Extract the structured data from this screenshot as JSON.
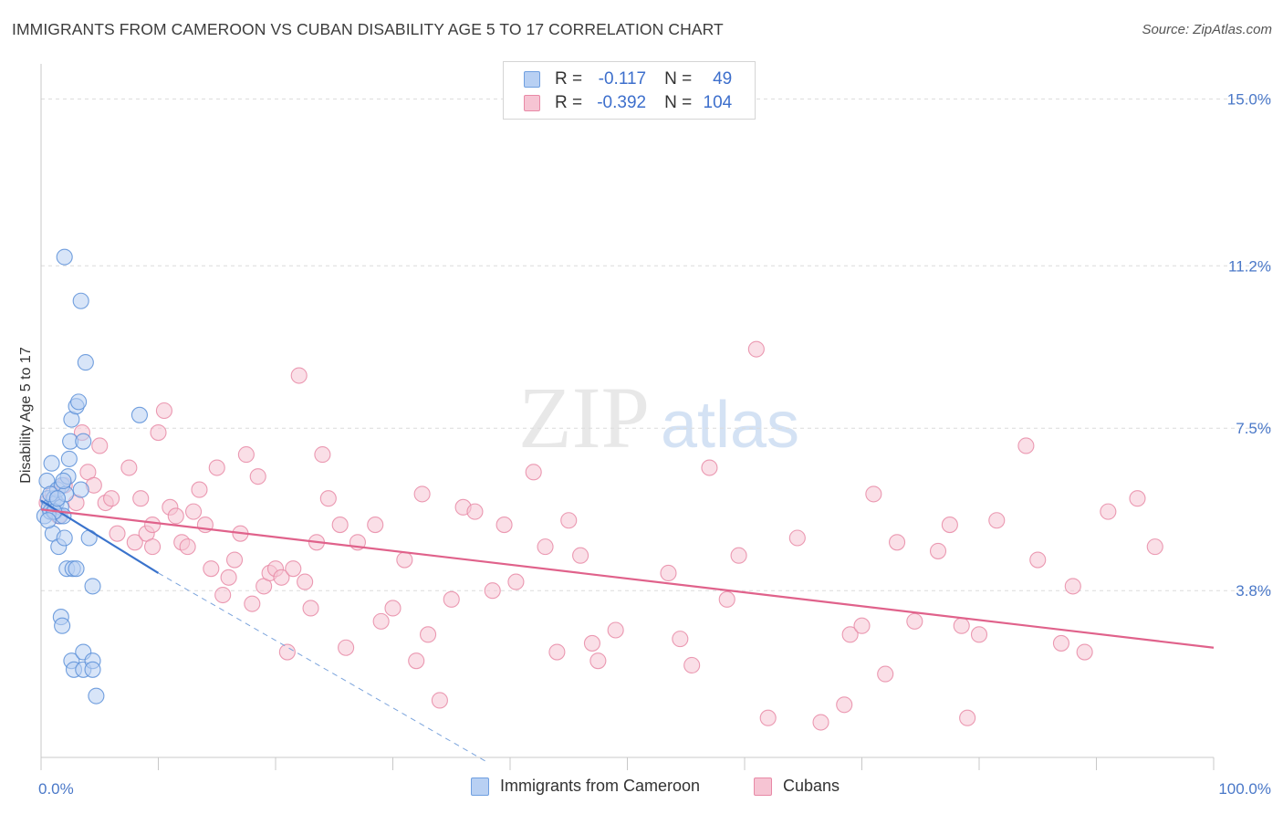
{
  "title": "IMMIGRANTS FROM CAMEROON VS CUBAN DISABILITY AGE 5 TO 17 CORRELATION CHART",
  "source": "Source: ZipAtlas.com",
  "watermark": {
    "zip": "ZIP",
    "atlas": "atlas"
  },
  "legend": {
    "r_label": "R =",
    "n_label": "N =",
    "rows": [
      {
        "r": "-0.117",
        "n": "49",
        "color": "#6f9fe0",
        "fill": "#b8d0f3"
      },
      {
        "r": "-0.392",
        "n": "104",
        "color": "#e889a6",
        "fill": "#f6c4d3"
      }
    ]
  },
  "chart_data": {
    "type": "scatter",
    "title": "IMMIGRANTS FROM CAMEROON VS CUBAN DISABILITY AGE 5 TO 17 CORRELATION CHART",
    "xlabel": "",
    "ylabel": "Disability Age 5 to 17",
    "xlim": [
      0,
      100
    ],
    "ylim": [
      0,
      15.8
    ],
    "x_tick_labels": [
      "0.0%",
      "100.0%"
    ],
    "y_ticks": [
      3.8,
      7.5,
      11.2,
      15.0
    ],
    "y_tick_labels": [
      "3.8%",
      "7.5%",
      "11.2%",
      "15.0%"
    ],
    "grid": true,
    "legend_position": "top-center",
    "series": [
      {
        "name": "Immigrants from Cameroon",
        "color": "#5b8fd8",
        "fill": "#b8d0f3",
        "trend": {
          "x": [
            0,
            10
          ],
          "y": [
            5.85,
            4.2
          ],
          "extend_x": 38,
          "extend_y": -0.1
        },
        "points": [
          [
            0.3,
            5.5
          ],
          [
            0.5,
            6.3
          ],
          [
            0.6,
            5.9
          ],
          [
            0.7,
            5.7
          ],
          [
            0.8,
            5.6
          ],
          [
            0.9,
            6.7
          ],
          [
            1.0,
            5.1
          ],
          [
            1.1,
            5.9
          ],
          [
            1.2,
            5.6
          ],
          [
            1.3,
            5.8
          ],
          [
            1.4,
            6.1
          ],
          [
            1.5,
            4.8
          ],
          [
            1.6,
            5.5
          ],
          [
            1.7,
            5.7
          ],
          [
            1.8,
            6.2
          ],
          [
            1.9,
            5.5
          ],
          [
            2.0,
            5.0
          ],
          [
            2.1,
            6.0
          ],
          [
            2.2,
            4.3
          ],
          [
            2.3,
            6.4
          ],
          [
            2.4,
            6.8
          ],
          [
            2.5,
            7.2
          ],
          [
            2.6,
            7.7
          ],
          [
            2.0,
            11.4
          ],
          [
            3.4,
            10.4
          ],
          [
            3.8,
            9.0
          ],
          [
            3.0,
            8.0
          ],
          [
            3.2,
            8.1
          ],
          [
            3.6,
            7.2
          ],
          [
            3.4,
            6.1
          ],
          [
            2.7,
            4.3
          ],
          [
            3.0,
            4.3
          ],
          [
            4.1,
            5.0
          ],
          [
            4.4,
            3.9
          ],
          [
            1.7,
            3.2
          ],
          [
            1.8,
            3.0
          ],
          [
            2.6,
            2.2
          ],
          [
            2.8,
            2.0
          ],
          [
            3.6,
            2.4
          ],
          [
            3.6,
            2.0
          ],
          [
            4.4,
            2.2
          ],
          [
            4.4,
            2.0
          ],
          [
            4.7,
            1.4
          ],
          [
            8.4,
            7.8
          ],
          [
            0.8,
            6.0
          ],
          [
            1.1,
            5.6
          ],
          [
            1.4,
            5.9
          ],
          [
            0.6,
            5.4
          ],
          [
            1.9,
            6.3
          ]
        ]
      },
      {
        "name": "Cubans",
        "color": "#e889a6",
        "fill": "#f6c4d3",
        "trend": {
          "x": [
            0,
            100
          ],
          "y": [
            5.65,
            2.5
          ]
        },
        "points": [
          [
            0.5,
            5.8
          ],
          [
            1.0,
            6.0
          ],
          [
            1.5,
            5.5
          ],
          [
            2.0,
            6.2
          ],
          [
            3.0,
            5.8
          ],
          [
            3.5,
            7.4
          ],
          [
            4.0,
            6.5
          ],
          [
            4.5,
            6.2
          ],
          [
            5.0,
            7.1
          ],
          [
            5.5,
            5.8
          ],
          [
            6.0,
            5.9
          ],
          [
            6.5,
            5.1
          ],
          [
            7.5,
            6.6
          ],
          [
            8.0,
            4.9
          ],
          [
            8.5,
            5.9
          ],
          [
            9.0,
            5.1
          ],
          [
            9.5,
            5.3
          ],
          [
            9.5,
            4.8
          ],
          [
            10.0,
            7.4
          ],
          [
            10.5,
            7.9
          ],
          [
            11.0,
            5.7
          ],
          [
            11.5,
            5.5
          ],
          [
            12.0,
            4.9
          ],
          [
            12.5,
            4.8
          ],
          [
            13.0,
            5.6
          ],
          [
            13.5,
            6.1
          ],
          [
            14.0,
            5.3
          ],
          [
            14.5,
            4.3
          ],
          [
            15.0,
            6.6
          ],
          [
            15.5,
            3.7
          ],
          [
            16.0,
            4.1
          ],
          [
            16.5,
            4.5
          ],
          [
            17.0,
            5.1
          ],
          [
            17.5,
            6.9
          ],
          [
            18.0,
            3.5
          ],
          [
            18.5,
            6.4
          ],
          [
            19.0,
            3.9
          ],
          [
            19.5,
            4.2
          ],
          [
            20.0,
            4.3
          ],
          [
            20.5,
            4.1
          ],
          [
            21.0,
            2.4
          ],
          [
            21.5,
            4.3
          ],
          [
            22.0,
            8.7
          ],
          [
            22.5,
            4.0
          ],
          [
            23.0,
            3.4
          ],
          [
            23.5,
            4.9
          ],
          [
            24.0,
            6.9
          ],
          [
            24.5,
            5.9
          ],
          [
            25.5,
            5.3
          ],
          [
            26.0,
            2.5
          ],
          [
            27.0,
            4.9
          ],
          [
            28.5,
            5.3
          ],
          [
            29.0,
            3.1
          ],
          [
            30.0,
            3.4
          ],
          [
            31.0,
            4.5
          ],
          [
            32.0,
            2.2
          ],
          [
            32.5,
            6.0
          ],
          [
            33.0,
            2.8
          ],
          [
            34.0,
            1.3
          ],
          [
            35.0,
            3.6
          ],
          [
            36.0,
            5.7
          ],
          [
            37.0,
            5.6
          ],
          [
            38.5,
            3.8
          ],
          [
            39.5,
            5.3
          ],
          [
            40.5,
            4.0
          ],
          [
            42.0,
            6.5
          ],
          [
            43.0,
            4.8
          ],
          [
            44.0,
            2.4
          ],
          [
            45.0,
            5.4
          ],
          [
            46.0,
            4.6
          ],
          [
            47.0,
            2.6
          ],
          [
            47.5,
            2.2
          ],
          [
            49.0,
            2.9
          ],
          [
            53.5,
            4.2
          ],
          [
            54.5,
            2.7
          ],
          [
            55.5,
            2.1
          ],
          [
            57.0,
            6.6
          ],
          [
            58.5,
            3.6
          ],
          [
            59.5,
            4.6
          ],
          [
            61.0,
            9.3
          ],
          [
            62.0,
            0.9
          ],
          [
            64.5,
            5.0
          ],
          [
            66.5,
            0.8
          ],
          [
            68.5,
            1.2
          ],
          [
            69.0,
            2.8
          ],
          [
            70.0,
            3.0
          ],
          [
            71.0,
            6.0
          ],
          [
            72.0,
            1.9
          ],
          [
            73.0,
            4.9
          ],
          [
            74.5,
            3.1
          ],
          [
            76.5,
            4.7
          ],
          [
            77.5,
            5.3
          ],
          [
            78.5,
            3.0
          ],
          [
            79.0,
            0.9
          ],
          [
            80.0,
            2.8
          ],
          [
            81.5,
            5.4
          ],
          [
            84.0,
            7.1
          ],
          [
            85.0,
            4.5
          ],
          [
            87.0,
            2.6
          ],
          [
            88.0,
            3.9
          ],
          [
            89.0,
            2.4
          ],
          [
            91.0,
            5.6
          ],
          [
            93.5,
            5.9
          ],
          [
            95.0,
            4.8
          ]
        ]
      }
    ]
  }
}
